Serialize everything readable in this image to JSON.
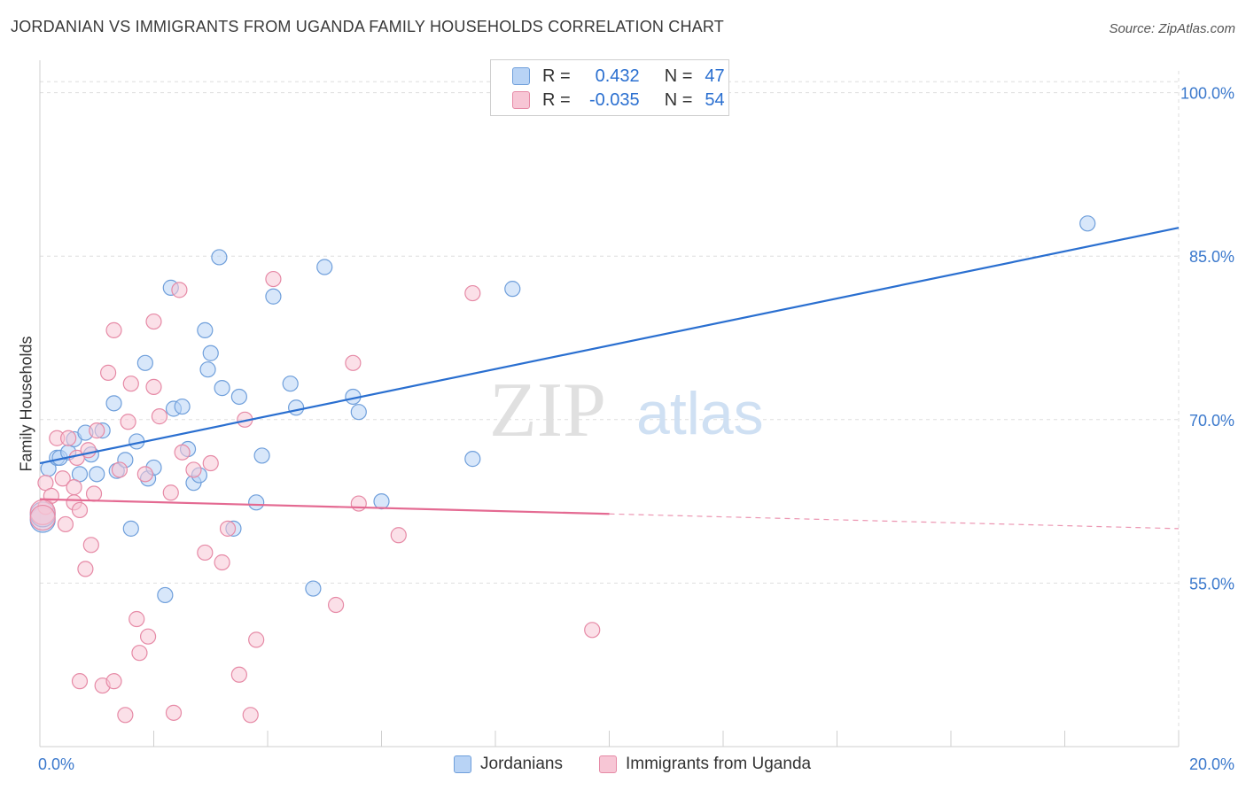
{
  "title": "JORDANIAN VS IMMIGRANTS FROM UGANDA FAMILY HOUSEHOLDS CORRELATION CHART",
  "source": "Source: ZipAtlas.com",
  "watermark": {
    "zip": "ZIP",
    "atlas": "atlas"
  },
  "legend": {
    "series1": {
      "r_label": "R =",
      "r_value": "0.432",
      "n_label": "N =",
      "n_value": "47"
    },
    "series2": {
      "r_label": "R =",
      "r_value": "-0.035",
      "n_label": "N =",
      "n_value": "54"
    }
  },
  "colors": {
    "blue_fill": "#b8d3f5",
    "blue_stroke": "#6f9fdb",
    "blue_line": "#2a6fd0",
    "pink_fill": "#f7c6d5",
    "pink_stroke": "#e68aa6",
    "pink_line": "#e46a92",
    "grid": "#dedede",
    "axis_text": "#3a78cc"
  },
  "chart_data": {
    "type": "scatter",
    "title": "JORDANIAN VS IMMIGRANTS FROM UGANDA FAMILY HOUSEHOLDS CORRELATION CHART",
    "xlabel": "",
    "ylabel": "Family Households",
    "xlim": [
      0,
      20
    ],
    "ylim": [
      40,
      102
    ],
    "x_tick_labels": [
      "0.0%",
      "20.0%"
    ],
    "y_tick_labels": [
      "55.0%",
      "70.0%",
      "85.0%",
      "100.0%"
    ],
    "y_ticks": [
      55,
      70,
      85,
      100
    ],
    "grid": true,
    "legend_position": "top-center",
    "series": [
      {
        "name": "Jordanians",
        "color": "#b8d3f5",
        "trend": {
          "x0": 0,
          "y0": 66.0,
          "x1": 20,
          "y1": 87.6,
          "dashed_from": null
        },
        "points": [
          [
            0.15,
            65.5
          ],
          [
            0.3,
            66.5
          ],
          [
            0.35,
            66.5
          ],
          [
            0.5,
            67.0
          ],
          [
            0.6,
            68.2
          ],
          [
            0.7,
            65.0
          ],
          [
            0.8,
            68.8
          ],
          [
            0.9,
            66.8
          ],
          [
            1.0,
            65.0
          ],
          [
            1.1,
            69.0
          ],
          [
            1.3,
            71.5
          ],
          [
            1.35,
            65.3
          ],
          [
            1.5,
            66.3
          ],
          [
            1.6,
            60.0
          ],
          [
            1.7,
            68.0
          ],
          [
            1.85,
            75.2
          ],
          [
            1.9,
            64.6
          ],
          [
            2.0,
            65.6
          ],
          [
            2.2,
            53.9
          ],
          [
            2.3,
            82.1
          ],
          [
            2.35,
            71.0
          ],
          [
            2.5,
            71.2
          ],
          [
            2.6,
            67.3
          ],
          [
            2.7,
            64.2
          ],
          [
            2.8,
            64.9
          ],
          [
            2.9,
            78.2
          ],
          [
            2.95,
            74.6
          ],
          [
            3.0,
            76.1
          ],
          [
            3.15,
            84.9
          ],
          [
            3.2,
            72.9
          ],
          [
            3.4,
            60.0
          ],
          [
            3.5,
            72.1
          ],
          [
            3.8,
            62.4
          ],
          [
            3.9,
            66.7
          ],
          [
            4.1,
            81.3
          ],
          [
            4.4,
            73.3
          ],
          [
            4.5,
            71.1
          ],
          [
            4.8,
            54.5
          ],
          [
            5.0,
            84.0
          ],
          [
            5.5,
            72.1
          ],
          [
            5.6,
            70.7
          ],
          [
            6.0,
            62.5
          ],
          [
            7.6,
            66.4
          ],
          [
            8.3,
            82.0
          ],
          [
            18.4,
            88.0
          ],
          [
            0.05,
            60.8
          ],
          [
            0.05,
            61.3
          ]
        ]
      },
      {
        "name": "Immigrants from Uganda",
        "color": "#f7c6d5",
        "trend": {
          "x0": 0,
          "y0": 62.7,
          "x1": 20,
          "y1": 60.0,
          "dashed_from": 10.0
        },
        "points": [
          [
            0.1,
            62.0
          ],
          [
            0.1,
            64.2
          ],
          [
            0.2,
            63.0
          ],
          [
            0.3,
            68.3
          ],
          [
            0.4,
            64.6
          ],
          [
            0.45,
            60.4
          ],
          [
            0.5,
            68.3
          ],
          [
            0.6,
            63.8
          ],
          [
            0.6,
            62.4
          ],
          [
            0.65,
            66.5
          ],
          [
            0.7,
            61.7
          ],
          [
            0.8,
            56.3
          ],
          [
            0.85,
            67.2
          ],
          [
            0.9,
            58.5
          ],
          [
            0.95,
            63.2
          ],
          [
            1.0,
            69.0
          ],
          [
            1.1,
            45.6
          ],
          [
            1.2,
            74.3
          ],
          [
            1.3,
            78.2
          ],
          [
            1.4,
            65.4
          ],
          [
            1.5,
            42.9
          ],
          [
            1.55,
            69.8
          ],
          [
            1.6,
            73.3
          ],
          [
            1.7,
            51.7
          ],
          [
            1.75,
            48.6
          ],
          [
            1.85,
            65.0
          ],
          [
            1.9,
            50.1
          ],
          [
            2.0,
            79.0
          ],
          [
            2.0,
            73.0
          ],
          [
            2.1,
            70.3
          ],
          [
            2.3,
            63.3
          ],
          [
            2.35,
            43.1
          ],
          [
            2.45,
            81.9
          ],
          [
            2.5,
            67.0
          ],
          [
            2.7,
            65.4
          ],
          [
            2.9,
            57.8
          ],
          [
            3.0,
            66.0
          ],
          [
            3.2,
            56.9
          ],
          [
            3.3,
            60.0
          ],
          [
            3.5,
            46.6
          ],
          [
            3.6,
            70.0
          ],
          [
            3.7,
            42.9
          ],
          [
            3.8,
            49.8
          ],
          [
            4.1,
            82.9
          ],
          [
            5.2,
            53.0
          ],
          [
            5.5,
            75.2
          ],
          [
            5.6,
            62.3
          ],
          [
            6.3,
            59.4
          ],
          [
            7.6,
            81.6
          ],
          [
            9.7,
            50.7
          ],
          [
            1.3,
            46.0
          ],
          [
            0.7,
            46.0
          ],
          [
            0.05,
            61.5
          ],
          [
            0.05,
            61.0
          ]
        ]
      }
    ]
  },
  "bottom_legend": {
    "label1": "Jordanians",
    "label2": "Immigrants from Uganda"
  }
}
